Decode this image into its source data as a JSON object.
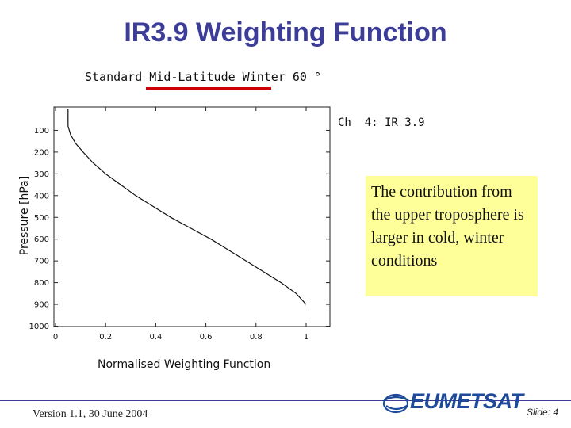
{
  "slide": {
    "title": "IR3.9 Weighting Function",
    "footer": "Version 1.1, 30 June 2004",
    "slide_number": "Slide: 4",
    "logo_text": "EUMETSAT"
  },
  "callout": {
    "text": "The contribution from the upper troposphere is larger in cold, winter conditions"
  },
  "colors": {
    "title": "#3c3c99",
    "underline": "#cc0000",
    "callout_bg": "#ffff99",
    "logo": "#1f4a9a"
  },
  "chart_data": {
    "type": "line",
    "title": "Standard Mid-Latitude Winter 60 °",
    "channel_label": "Ch  4: IR 3.9",
    "xlabel": "Normalised Weighting Function",
    "ylabel": "Pressure [hPa]",
    "xlim": [
      0,
      1.05
    ],
    "ylim": [
      1000,
      0
    ],
    "y_inverted": true,
    "grid": false,
    "x_ticks": [
      0,
      0.2,
      0.4,
      0.6,
      0.8,
      1
    ],
    "x_tick_labels": [
      "0",
      "0.2",
      "0.4",
      "0.6",
      "0.8",
      "1"
    ],
    "y_ticks": [
      100,
      200,
      300,
      400,
      500,
      600,
      700,
      800,
      900,
      1000
    ],
    "y_tick_labels": [
      "100",
      "200",
      "300",
      "400",
      "500",
      "600",
      "700",
      "800",
      "900",
      "1000"
    ],
    "series": [
      {
        "x": [
          0.05,
          0.05,
          0.05,
          0.06,
          0.08,
          0.11,
          0.15,
          0.2,
          0.26,
          0.32,
          0.39,
          0.46,
          0.54,
          0.62,
          0.69,
          0.76,
          0.83,
          0.9,
          0.96,
          1.0
        ],
        "y": [
          0,
          40,
          80,
          120,
          160,
          200,
          250,
          300,
          350,
          400,
          450,
          500,
          550,
          600,
          650,
          700,
          750,
          800,
          850,
          900
        ]
      }
    ]
  }
}
